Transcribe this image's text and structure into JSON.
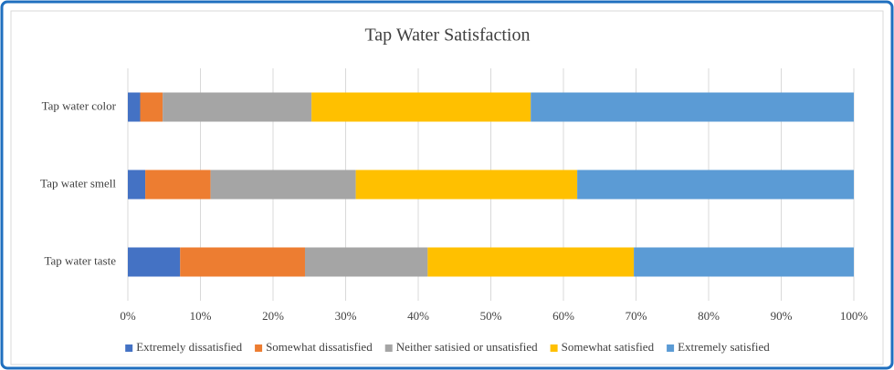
{
  "chart_data": {
    "type": "stacked-bar-horizontal",
    "title": "Tap Water Satisfaction",
    "categories": [
      "Tap water color",
      "Tap water smell",
      "Tap water taste"
    ],
    "series": [
      {
        "name": "Extremely dissatisfied",
        "color": "#4472c4",
        "values": [
          1.7,
          2.4,
          7.2
        ]
      },
      {
        "name": "Somewhat dissatisfied",
        "color": "#ed7d31",
        "values": [
          3.1,
          9.0,
          17.2
        ]
      },
      {
        "name": "Neither satisied or unsatisfied",
        "color": "#a5a5a5",
        "values": [
          20.5,
          20.0,
          16.9
        ]
      },
      {
        "name": "Somewhat satisfied",
        "color": "#ffc000",
        "values": [
          30.2,
          30.5,
          28.4
        ]
      },
      {
        "name": "Extremely satisfied",
        "color": "#5b9bd5",
        "values": [
          44.5,
          38.1,
          30.3
        ]
      }
    ],
    "xlim": [
      0,
      100
    ],
    "xticks": [
      {
        "value": 0,
        "label": "0%"
      },
      {
        "value": 10,
        "label": "10%"
      },
      {
        "value": 20,
        "label": "20%"
      },
      {
        "value": 30,
        "label": "30%"
      },
      {
        "value": 40,
        "label": "40%"
      },
      {
        "value": 50,
        "label": "50%"
      },
      {
        "value": 60,
        "label": "60%"
      },
      {
        "value": 70,
        "label": "70%"
      },
      {
        "value": 80,
        "label": "80%"
      },
      {
        "value": 90,
        "label": "90%"
      },
      {
        "value": 100,
        "label": "100%"
      }
    ],
    "grid": true,
    "legend": "bottom"
  }
}
